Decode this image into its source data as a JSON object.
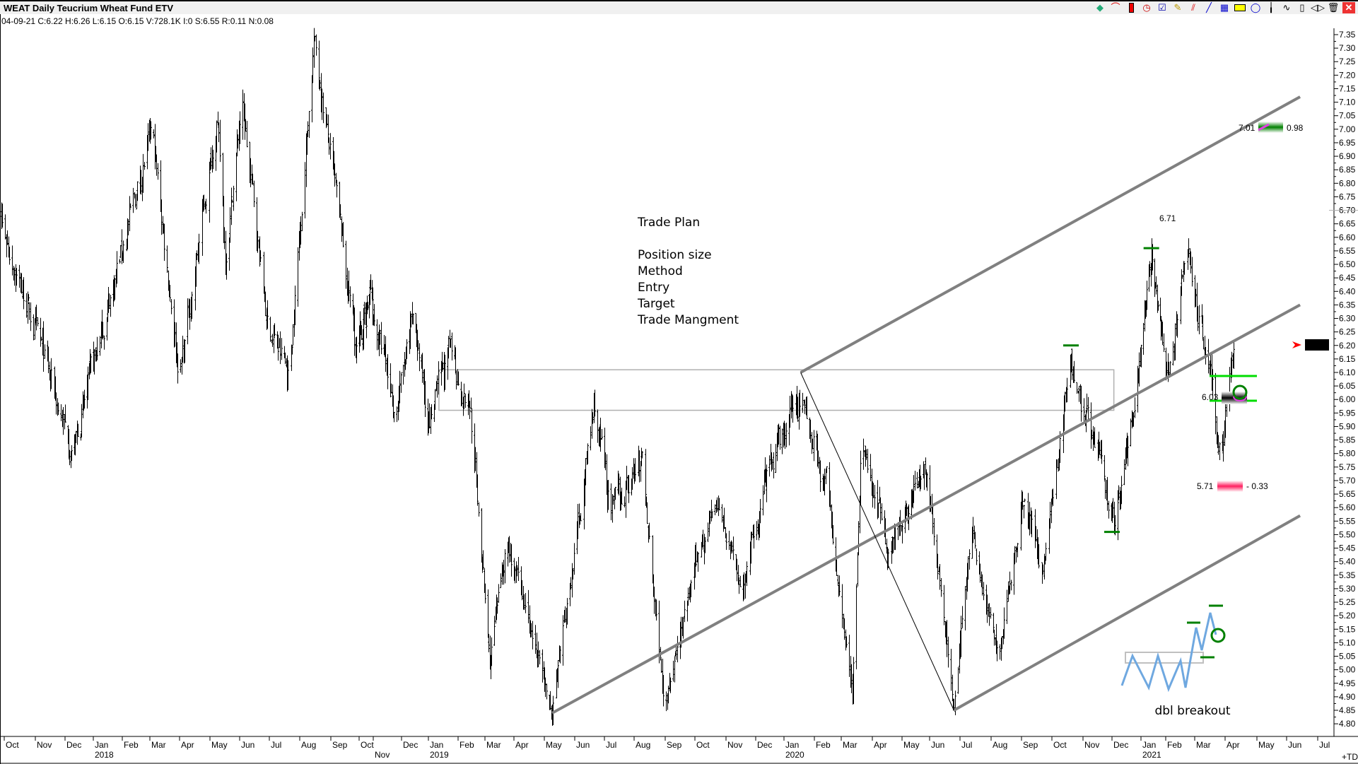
{
  "header": {
    "title": "WEAT Daily Teucrium Wheat Fund ETV",
    "stats": "04-09-21  C:6.22  H:6.26  L:6.15  O:6.15  V:728.1K  I:0  S:6.55  R:0.11  N:0.08"
  },
  "toolbar": {
    "icons": [
      "objects-icon",
      "arcs-icon",
      "candle-icon",
      "clock-icon",
      "checklist-icon",
      "pencil-icon",
      "parallel-lines-icon",
      "trendline-icon",
      "grid-icon",
      "rectangle-icon",
      "fan-icon",
      "bar-icon",
      "zigzag-icon",
      "box-icon",
      "split-icon",
      "trash-icon",
      "close-icon"
    ]
  },
  "colors": {
    "bars": "#000000",
    "trendline": "#808080",
    "level_mark": "#008000",
    "bright_green": "#00dd00",
    "target": "#008000",
    "stop": "#ff2060",
    "sketch": "#6fa8e0",
    "last_price_arrow": "#ff0000"
  },
  "chart_data": {
    "type": "ohlc",
    "title": "WEAT Daily Teucrium Wheat Fund ETV",
    "ylim": [
      4.8,
      7.35
    ],
    "y_tick_step": 0.05,
    "last_price": "6.22",
    "x_axis": {
      "months": [
        {
          "d": "2017-10-01",
          "label": "Oct"
        },
        {
          "d": "2017-11-01",
          "label": "Nov"
        },
        {
          "d": "2017-12-01",
          "label": "Dec"
        },
        {
          "d": "2018-01-01",
          "label": "Jan",
          "year": "2018"
        },
        {
          "d": "2018-02-01",
          "label": "Feb"
        },
        {
          "d": "2018-03-01",
          "label": "Mar"
        },
        {
          "d": "2018-04-01",
          "label": "Apr"
        },
        {
          "d": "2018-05-01",
          "label": "May"
        },
        {
          "d": "2018-06-01",
          "label": "Jun"
        },
        {
          "d": "2018-07-01",
          "label": "Jul"
        },
        {
          "d": "2018-08-01",
          "label": "Aug"
        },
        {
          "d": "2018-09-01",
          "label": "Sep"
        },
        {
          "d": "2018-10-01",
          "label": "Oct"
        },
        {
          "d": "2018-11-01",
          "label": "Nov"
        },
        {
          "d": "2018-12-01",
          "label": "Dec"
        },
        {
          "d": "2019-01-01",
          "label": "Jan",
          "year": "2019"
        },
        {
          "d": "2019-02-01",
          "label": "Feb"
        },
        {
          "d": "2019-03-01",
          "label": "Mar"
        },
        {
          "d": "2019-04-01",
          "label": "Apr"
        },
        {
          "d": "2019-05-01",
          "label": "May"
        },
        {
          "d": "2019-06-01",
          "label": "Jun"
        },
        {
          "d": "2019-07-01",
          "label": "Jul"
        },
        {
          "d": "2019-08-01",
          "label": "Aug"
        },
        {
          "d": "2019-09-01",
          "label": "Sep"
        },
        {
          "d": "2019-10-01",
          "label": "Oct"
        },
        {
          "d": "2019-11-01",
          "label": "Nov"
        },
        {
          "d": "2019-12-01",
          "label": "Dec"
        },
        {
          "d": "2020-01-01",
          "label": "Jan",
          "year": "2020"
        },
        {
          "d": "2020-02-01",
          "label": "Feb"
        },
        {
          "d": "2020-03-01",
          "label": "Mar"
        },
        {
          "d": "2020-04-01",
          "label": "Apr"
        },
        {
          "d": "2020-05-01",
          "label": "May"
        },
        {
          "d": "2020-06-01",
          "label": "Jun"
        },
        {
          "d": "2020-07-01",
          "label": "Jul"
        },
        {
          "d": "2020-08-01",
          "label": "Aug"
        },
        {
          "d": "2020-09-01",
          "label": "Sep"
        },
        {
          "d": "2020-10-01",
          "label": "Oct"
        },
        {
          "d": "2020-11-01",
          "label": "Nov"
        },
        {
          "d": "2020-12-01",
          "label": "Dec"
        },
        {
          "d": "2021-01-01",
          "label": "Jan",
          "year": "2021"
        },
        {
          "d": "2021-02-01",
          "label": "Feb"
        },
        {
          "d": "2021-03-01",
          "label": "Mar"
        },
        {
          "d": "2021-04-01",
          "label": "Apr"
        },
        {
          "d": "2021-05-01",
          "label": "May"
        },
        {
          "d": "2021-06-01",
          "label": "Jun"
        },
        {
          "d": "2021-07-01",
          "label": "Jul"
        }
      ],
      "corner_label": "+TD"
    },
    "price_path": [
      [
        "2017-09-20",
        6.75
      ],
      [
        "2017-12-09",
        5.8
      ],
      [
        "2018-03-03",
        6.99
      ],
      [
        "2018-04-01",
        6.09
      ],
      [
        "2018-05-08",
        7.05
      ],
      [
        "2018-05-17",
        6.53
      ],
      [
        "2018-06-03",
        7.1
      ],
      [
        "2018-06-29",
        6.28
      ],
      [
        "2018-07-21",
        6.09
      ],
      [
        "2018-08-15",
        7.33
      ],
      [
        "2018-09-28",
        6.18
      ],
      [
        "2018-10-26",
        6.4
      ],
      [
        "2018-11-24",
        5.96
      ],
      [
        "2018-12-15",
        6.28
      ],
      [
        "2019-01-02",
        5.93
      ],
      [
        "2019-01-23",
        6.17
      ],
      [
        "2019-02-14",
        5.96
      ],
      [
        "2019-03-06",
        5.02
      ],
      [
        "2019-03-24",
        5.49
      ],
      [
        "2019-05-09",
        4.84
      ],
      [
        "2019-06-21",
        5.98
      ],
      [
        "2019-07-08",
        5.58
      ],
      [
        "2019-08-09",
        5.77
      ],
      [
        "2019-08-31",
        4.88
      ],
      [
        "2019-10-19",
        5.65
      ],
      [
        "2019-11-17",
        5.3
      ],
      [
        "2019-12-11",
        5.68
      ],
      [
        "2020-01-18",
        6.02
      ],
      [
        "2020-02-14",
        5.68
      ],
      [
        "2020-03-12",
        4.93
      ],
      [
        "2020-03-21",
        5.83
      ],
      [
        "2020-04-17",
        5.46
      ],
      [
        "2020-05-28",
        5.77
      ],
      [
        "2020-06-25",
        4.86
      ],
      [
        "2020-07-12",
        5.51
      ],
      [
        "2020-08-09",
        5.04
      ],
      [
        "2020-09-02",
        5.65
      ],
      [
        "2020-09-22",
        5.38
      ],
      [
        "2020-10-20",
        6.15
      ],
      [
        "2020-11-07",
        5.9
      ],
      [
        "2020-12-04",
        5.55
      ],
      [
        "2020-12-21",
        5.9
      ],
      [
        "2021-01-14",
        6.53
      ],
      [
        "2021-02-01",
        6.05
      ],
      [
        "2021-02-21",
        6.54
      ],
      [
        "2021-03-15",
        6.13
      ],
      [
        "2021-03-27",
        5.77
      ],
      [
        "2021-04-09",
        6.22
      ]
    ],
    "trendlines": [
      {
        "kind": "channel-upper",
        "from": [
          "2020-01-18",
          6.1
        ],
        "to": [
          "2021-06-14",
          7.12
        ]
      },
      {
        "kind": "channel-middle",
        "from": [
          "2019-05-09",
          4.84
        ],
        "to": [
          "2021-06-14",
          6.35
        ]
      },
      {
        "kind": "channel-lower",
        "from": [
          "2020-06-25",
          4.85
        ],
        "to": [
          "2021-06-14",
          5.57
        ]
      },
      {
        "kind": "thin",
        "from": [
          "2020-01-18",
          6.1
        ],
        "to": [
          "2020-06-25",
          4.85
        ]
      }
    ],
    "range_box": {
      "from": "2019-01-12",
      "to": "2020-12-03",
      "low": 5.96,
      "high": 6.11
    },
    "swing_marks": [
      [
        "2020-10-20",
        6.2
      ],
      [
        "2021-01-14",
        6.56
      ],
      [
        "2020-12-01",
        5.51
      ]
    ],
    "annotations": {
      "trade_plan": [
        "Trade Plan",
        "",
        "Position size",
        "Method",
        "Entry",
        "Target",
        "Trade Mangment"
      ],
      "target_price": "7.01",
      "target_gain": "0.98",
      "level_label": "6.71",
      "entry_price": "6.03",
      "stop_price": "5.71",
      "stop_loss": "- 0.33",
      "sketch_label": "dbl breakout"
    }
  }
}
